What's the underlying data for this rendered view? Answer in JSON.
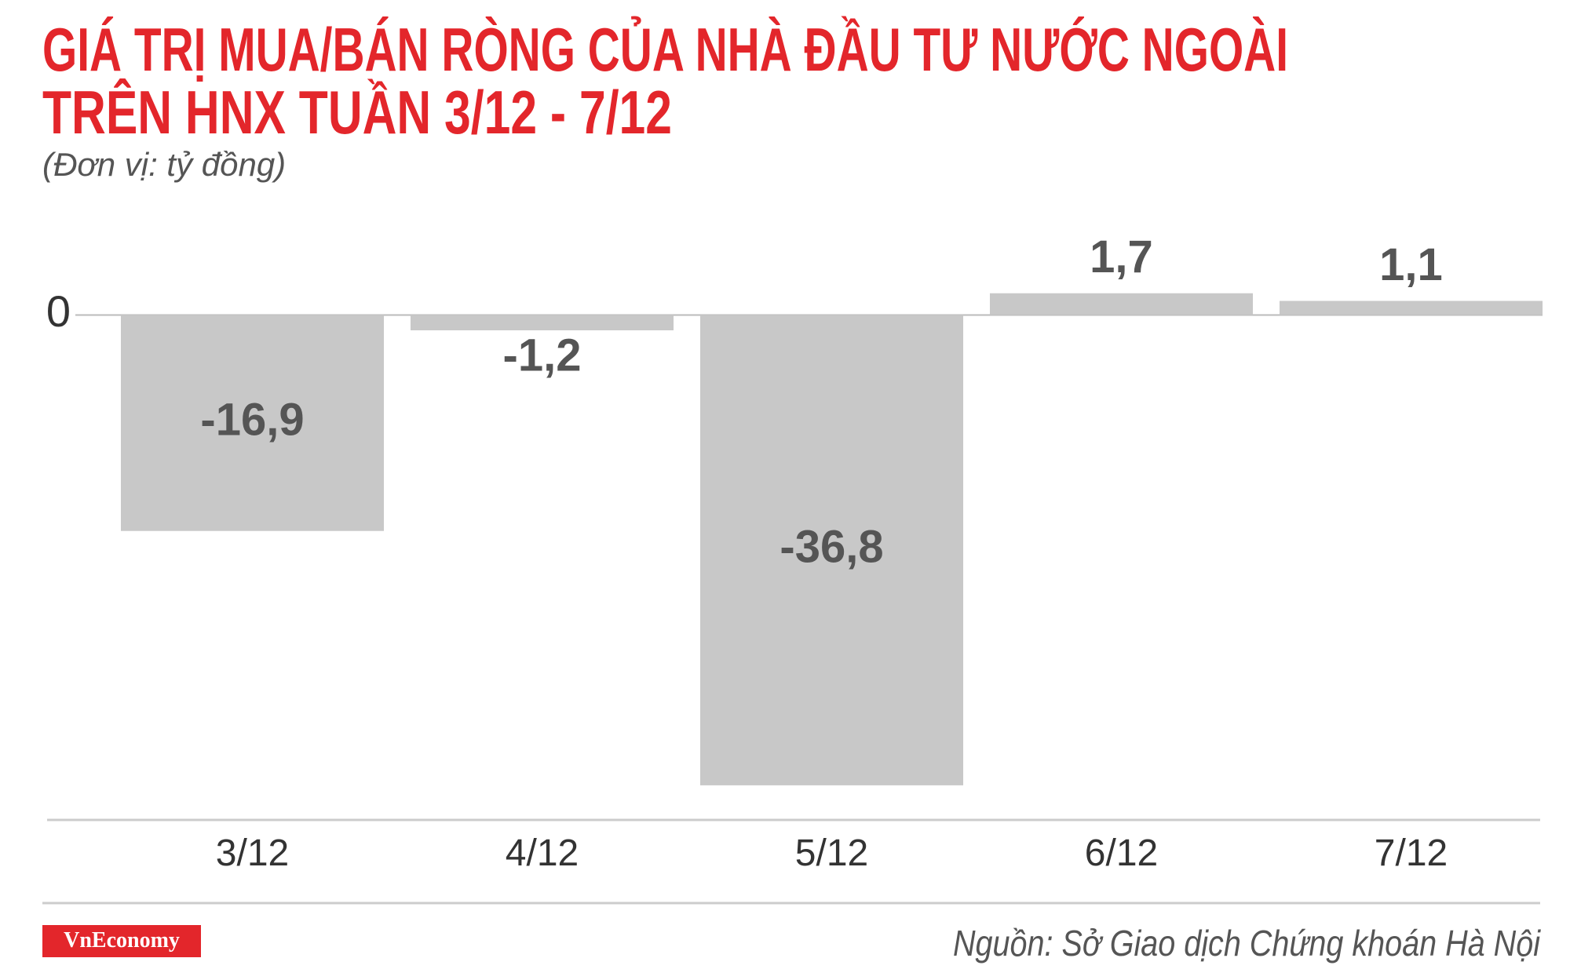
{
  "chart_data": {
    "type": "bar",
    "title": [
      "GIÁ TRỊ MUA/BÁN RÒNG CỦA NHÀ ĐẦU TƯ NƯỚC NGOÀI",
      "TRÊN HNX TUẦN 3/12 - 7/12"
    ],
    "subtitle": "(Đơn vị: tỷ đồng)",
    "categories": [
      "3/12",
      "4/12",
      "5/12",
      "6/12",
      "7/12"
    ],
    "values": [
      -16.9,
      -1.2,
      -36.8,
      1.7,
      1.1
    ],
    "value_labels": [
      "-16,9",
      "-1,2",
      "-36,8",
      "1,7",
      "1,1"
    ],
    "color": "#c8c8c8",
    "ylim": [
      -40,
      5
    ],
    "yticks": [
      0
    ],
    "source": "Nguồn: Sở Giao dịch Chứng khoán Hà Nội",
    "logo": "VnEconomy"
  }
}
